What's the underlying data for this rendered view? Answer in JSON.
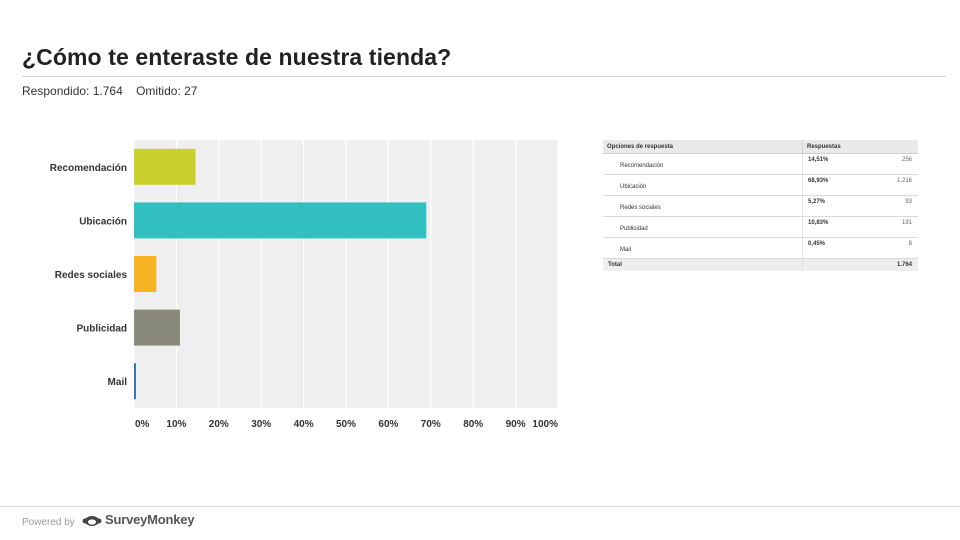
{
  "question": {
    "title": "¿Cómo te enteraste de nuestra tienda?",
    "answered": "Respondido: 1.764",
    "skipped": "Omitido: 27"
  },
  "colors": {
    "grid_background": "#efefef",
    "gridline": "#ffffff",
    "series": [
      "#cbd12c",
      "#31bfbf",
      "#f7b422",
      "#8a8a7a",
      "#2f6db5"
    ]
  },
  "chart_data": {
    "type": "bar",
    "orientation": "horizontal",
    "categories": [
      "Recomendación",
      "Ubicación",
      "Redes sociales",
      "Publicidad",
      "Mail"
    ],
    "values": [
      14.51,
      68.93,
      5.27,
      10.83,
      0.45
    ],
    "xlim": [
      0,
      100
    ],
    "x_ticks": [
      0,
      10,
      20,
      30,
      40,
      50,
      60,
      70,
      80,
      90,
      100
    ],
    "x_tick_labels": [
      "0%",
      "10%",
      "20%",
      "30%",
      "40%",
      "50%",
      "60%",
      "70%",
      "80%",
      "90%",
      "100%"
    ],
    "grid": true
  },
  "table": {
    "headers": [
      "Opciones de respuesta",
      "Respuestas"
    ],
    "rows": [
      {
        "option": "Recomendación",
        "percent": "14,51%",
        "count": "256"
      },
      {
        "option": "Ubicación",
        "percent": "68,93%",
        "count": "1.216"
      },
      {
        "option": "Redes sociales",
        "percent": "5,27%",
        "count": "93"
      },
      {
        "option": "Publicidad",
        "percent": "10,83%",
        "count": "191"
      },
      {
        "option": "Mail",
        "percent": "0,45%",
        "count": "8"
      }
    ],
    "total_label": "Total",
    "total_value": "1.764"
  },
  "footer": {
    "powered_by": "Powered by",
    "brand": "SurveyMonkey",
    "logo_icon": "surveymonkey-logo-icon"
  }
}
